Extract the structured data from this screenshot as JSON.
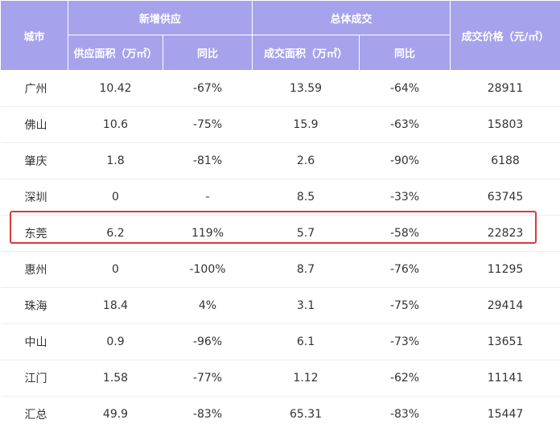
{
  "header": {
    "city": "城市",
    "supply_group": "新增供应",
    "deal_group": "总体成交",
    "price": "成交价格（元/㎡）",
    "supply_area": "供应面积（万㎡）",
    "supply_yoy": "同比",
    "deal_area": "成交面积（万㎡）",
    "deal_yoy": "同比"
  },
  "rows": [
    {
      "city": "广州",
      "supply_area": "10.42",
      "supply_yoy": "-67%",
      "deal_area": "13.59",
      "deal_yoy": "-64%",
      "price": "28911"
    },
    {
      "city": "佛山",
      "supply_area": "10.6",
      "supply_yoy": "-75%",
      "deal_area": "15.9",
      "deal_yoy": "-63%",
      "price": "15803"
    },
    {
      "city": "肇庆",
      "supply_area": "1.8",
      "supply_yoy": "-81%",
      "deal_area": "2.6",
      "deal_yoy": "-90%",
      "price": "6188"
    },
    {
      "city": "深圳",
      "supply_area": "0",
      "supply_yoy": "-",
      "deal_area": "8.5",
      "deal_yoy": "-33%",
      "price": "63745"
    },
    {
      "city": "东莞",
      "supply_area": "6.2",
      "supply_yoy": "119%",
      "deal_area": "5.7",
      "deal_yoy": "-58%",
      "price": "22823"
    },
    {
      "city": "惠州",
      "supply_area": "0",
      "supply_yoy": "-100%",
      "deal_area": "8.7",
      "deal_yoy": "-76%",
      "price": "11295"
    },
    {
      "city": "珠海",
      "supply_area": "18.4",
      "supply_yoy": "4%",
      "deal_area": "3.1",
      "deal_yoy": "-75%",
      "price": "29414"
    },
    {
      "city": "中山",
      "supply_area": "0.9",
      "supply_yoy": "-96%",
      "deal_area": "6.1",
      "deal_yoy": "-73%",
      "price": "13651"
    },
    {
      "city": "江门",
      "supply_area": "1.58",
      "supply_yoy": "-77%",
      "deal_area": "1.12",
      "deal_yoy": "-62%",
      "price": "11141"
    },
    {
      "city": "汇总",
      "supply_area": "49.9",
      "supply_yoy": "-83%",
      "deal_area": "65.31",
      "deal_yoy": "-83%",
      "price": "15447"
    }
  ],
  "colors": {
    "header_bg": "#a6a3ec",
    "highlight": "#d93a3a"
  }
}
